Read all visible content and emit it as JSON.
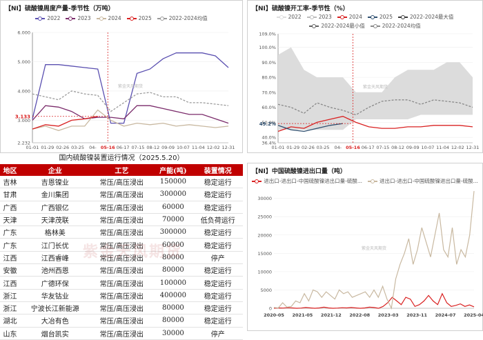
{
  "charts": {
    "top_left": {
      "title": "【NI】硫酸镍周度产量-季节性（万吨）",
      "watermark": "紫金天风期货",
      "highlight_label": "3.133",
      "highlight_x": "05-16"
    },
    "top_right": {
      "title": "【NI】硫酸镍开工率-季节性（%）",
      "watermark": "紫金天风期货",
      "highlight_label": "49.2%",
      "highlight_x": "05-16"
    },
    "bottom_right": {
      "title": "【NI】中国硫酸镍进出口量（吨）",
      "watermark": "紫金天风期货"
    }
  },
  "chart_data": [
    {
      "type": "line",
      "xlabels": [
        "01-01",
        "01-29",
        "02-26",
        "03-25",
        "04-",
        "05-16",
        "06-17",
        "07-15",
        "08-12",
        "09-09",
        "10-07",
        "11-04",
        "12-02",
        "12-31"
      ],
      "yticks": [
        2.232,
        3.0,
        4.0,
        5.0,
        6.0
      ],
      "ylim": [
        2.232,
        6.0
      ],
      "series": [
        {
          "name": "2022",
          "color": "#5a4fb0",
          "values": [
            3.05,
            4.9,
            4.9,
            4.85,
            4.8,
            4.75,
            2.9,
            2.9,
            4.6,
            4.75,
            5.1,
            5.3,
            5.3,
            5.3,
            5.2,
            4.8
          ]
        },
        {
          "name": "2023",
          "color": "#7a2a6a",
          "values": [
            3.0,
            3.5,
            3.45,
            3.3,
            3.05,
            3.1,
            3.1,
            3.05,
            3.5,
            3.5,
            3.4,
            3.3,
            3.2,
            3.2,
            3.05,
            2.9
          ]
        },
        {
          "name": "2024",
          "color": "#c8b8a0",
          "values": [
            2.7,
            2.8,
            2.65,
            2.8,
            2.8,
            3.35,
            3.0,
            2.8,
            2.9,
            2.85,
            2.9,
            2.8,
            2.85,
            2.8,
            2.75,
            2.8
          ]
        },
        {
          "name": "2025",
          "color": "#d92020",
          "values": [
            2.7,
            2.85,
            2.8,
            3.0,
            3.05,
            3.133
          ]
        },
        {
          "name": "2022-2024均值",
          "color": "#9a9a9a",
          "values": [
            3.9,
            3.8,
            3.7,
            4.0,
            3.9,
            3.85,
            3.3,
            3.6,
            3.9,
            3.95,
            3.8,
            3.8,
            3.6,
            3.6,
            3.55,
            3.5
          ]
        }
      ]
    },
    {
      "type": "line",
      "xlabels": [
        "01-01",
        "01-29",
        "02-26",
        "03-25",
        "04-",
        "05-16",
        "06-17",
        "07-15",
        "08-12",
        "09-09",
        "10-07",
        "11-04",
        "12-02",
        "12-31"
      ],
      "yticks": [
        "36.4%",
        "40.0%",
        "50.0%",
        "60.0%",
        "70.0%",
        "80.0%",
        "90.0%",
        "100.0%",
        "109.0%"
      ],
      "ylim": [
        36.4,
        109.0
      ],
      "band_max": [
        95,
        100,
        85,
        80,
        80,
        80,
        70,
        70,
        70,
        80,
        85,
        85,
        85,
        90,
        90,
        80
      ],
      "band_min": [
        45,
        45,
        45,
        45,
        45,
        45,
        52,
        52,
        52,
        52,
        52,
        55,
        55,
        55,
        55,
        55
      ],
      "series": [
        {
          "name": "2022",
          "color": "#dddddd",
          "values": []
        },
        {
          "name": "2023",
          "color": "#bbbbbb",
          "values": []
        },
        {
          "name": "2024",
          "color": "#d92020",
          "values": [
            44,
            47,
            46,
            50,
            52,
            54,
            50,
            47,
            46,
            46,
            47,
            47,
            48,
            48,
            48,
            47
          ]
        },
        {
          "name": "2025",
          "color": "#2f4f6f",
          "values": [
            48,
            45,
            44,
            46,
            48,
            49.2
          ]
        },
        {
          "name": "2022-2024最大值",
          "color": "#3a3a3a",
          "values": []
        },
        {
          "name": "2022-2024最小值",
          "color": "#606060",
          "values": []
        },
        {
          "name": "2022-2024均值",
          "color": "#888888",
          "values": [
            62,
            60,
            56,
            63,
            60,
            58,
            55,
            60,
            64,
            65,
            65,
            62,
            65,
            64,
            63,
            60
          ]
        }
      ]
    },
    {
      "type": "line",
      "xlabels": [
        "2020-05",
        "2021-05",
        "2021-12",
        "2022-08",
        "2023-03",
        "2023-11",
        "2024-07",
        "2025-04"
      ],
      "yticks": [
        "0",
        "5000",
        "10000",
        "15000",
        "20000",
        "25000",
        "30000"
      ],
      "ylim": [
        0,
        32000
      ],
      "series": [
        {
          "name": "进出口-进出口-中国硫酸镍进出口量-硫酸...",
          "color": "#d92020",
          "values": [
            0,
            100,
            50,
            150,
            100,
            0,
            50,
            200,
            100,
            0,
            100,
            300,
            100,
            0,
            50,
            150,
            100,
            200,
            100,
            0,
            100,
            300,
            200,
            0,
            500,
            1500,
            3000,
            2000,
            1000,
            3000,
            2500,
            500,
            1000,
            2000,
            3500,
            2000,
            1000,
            4000,
            1500,
            500,
            800,
            1200,
            500,
            900,
            400
          ]
        },
        {
          "name": "进出口-进出口-中国硫酸镍进出口量-硫酸...",
          "color": "#c8b8a0",
          "values": [
            200,
            100,
            1500,
            300,
            500,
            2000,
            1500,
            4000,
            2000,
            5000,
            4500,
            3000,
            4500,
            3500,
            2500,
            5000,
            4000,
            4500,
            3000,
            3500,
            4000,
            4500,
            3000,
            5000,
            3000,
            6000,
            2500,
            0,
            8000,
            12000,
            15000,
            19000,
            12000,
            16000,
            22000,
            18000,
            14000,
            20000,
            26000,
            16000,
            14000,
            22000,
            12000,
            16000,
            14000,
            20000,
            32000
          ]
        }
      ]
    }
  ],
  "table": {
    "title": "国内硫酸镍装置运行情况（2025.5.20）",
    "watermark": "紫金天风期货",
    "columns": [
      "地区",
      "企业",
      "工艺",
      "产能(吨)",
      "装置情况"
    ],
    "rows": [
      [
        "吉林",
        "吉恩镍业",
        "常压/高压浸出",
        "150000",
        "稳定运行"
      ],
      [
        "甘肃",
        "金川集团",
        "常压/高压浸出",
        "300000",
        "稳定运行"
      ],
      [
        "广西",
        "广西银亿",
        "常压/高压浸出",
        "60000",
        "稳定运行"
      ],
      [
        "天津",
        "天津茂联",
        "常压/高压浸出",
        "70000",
        "低负荷运行"
      ],
      [
        "广东",
        "格林美",
        "常压/高压浸出",
        "300000",
        "稳定运行"
      ],
      [
        "广东",
        "江门长优",
        "常压/高压浸出",
        "60000",
        "稳定运行"
      ],
      [
        "江西",
        "江西睿峰",
        "常压/高压浸出",
        "80000",
        "停产"
      ],
      [
        "安徽",
        "池州西恩",
        "常压/高压浸出",
        "80000",
        "稳定运行"
      ],
      [
        "江西",
        "广德环保",
        "常压/高压浸出",
        "100000",
        "稳定运行"
      ],
      [
        "浙江",
        "华友钴业",
        "常压/高压浸出",
        "400000",
        "稳定运行"
      ],
      [
        "浙江",
        "宁波长江新能源",
        "常压/高压浸出",
        "80000",
        "稳定运行"
      ],
      [
        "湖北",
        "大冶有色",
        "常压/高压浸出",
        "80000",
        "稳定运行"
      ],
      [
        "山东",
        "烟台凯实",
        "常压/高压浸出",
        "30000",
        "停产"
      ]
    ]
  }
}
